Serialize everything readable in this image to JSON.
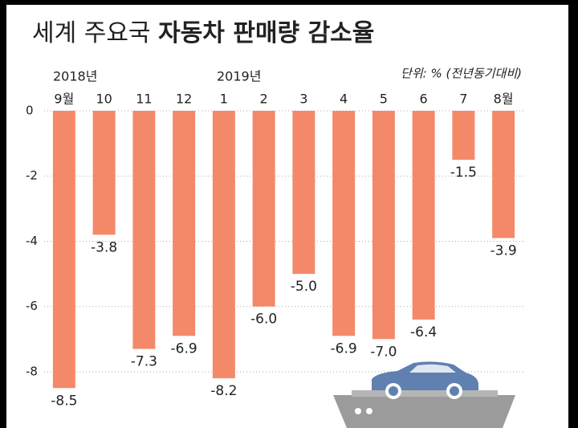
{
  "chart_data": {
    "type": "bar",
    "title": "세계 주요국",
    "title_emphasis": "자동차 판매량 감소율",
    "unit_note": "단위: % (전년동기대비)",
    "year_labels": [
      "2018년",
      "2019년"
    ],
    "categories": [
      "9월",
      "10",
      "11",
      "12",
      "1",
      "2",
      "3",
      "4",
      "5",
      "6",
      "7",
      "8월"
    ],
    "values": [
      -8.5,
      -3.8,
      -7.3,
      -6.9,
      -8.2,
      -6.0,
      -5.0,
      -6.9,
      -7.0,
      -6.4,
      -1.5,
      -3.9
    ],
    "value_labels": [
      "-8.5",
      "-3.8",
      "-7.3",
      "-6.9",
      "-8.2",
      "-6.0",
      "-5.0",
      "-6.9",
      "-7.0",
      "-6.4",
      "-1.5",
      "-3.9"
    ],
    "color": "#f4896a",
    "ylim": [
      -9.7,
      0
    ],
    "yticks": [
      0,
      -2,
      -4,
      -6,
      -8
    ],
    "grid": true
  }
}
